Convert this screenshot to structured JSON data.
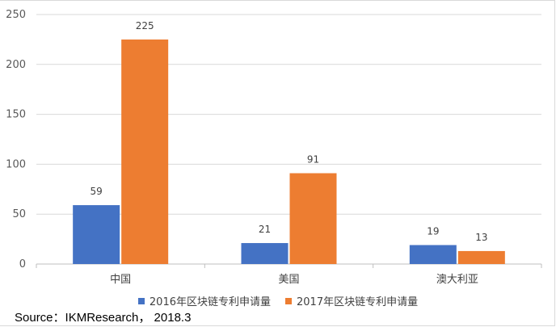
{
  "chart_data": {
    "type": "bar",
    "categories": [
      "中国",
      "美国",
      "澳大利亚"
    ],
    "series": [
      {
        "name": "2016年区块链专利申请量",
        "values": [
          59,
          21,
          19
        ],
        "color": "#4472c4"
      },
      {
        "name": "2017年区块链专利申请量",
        "values": [
          225,
          91,
          13
        ],
        "color": "#ed7d31"
      }
    ],
    "ylim": [
      0,
      250
    ],
    "yticks": [
      0,
      50,
      100,
      150,
      200,
      250
    ],
    "grid": true,
    "legend": "bottom"
  },
  "source": "Source：IKMResearch， 2018.3"
}
